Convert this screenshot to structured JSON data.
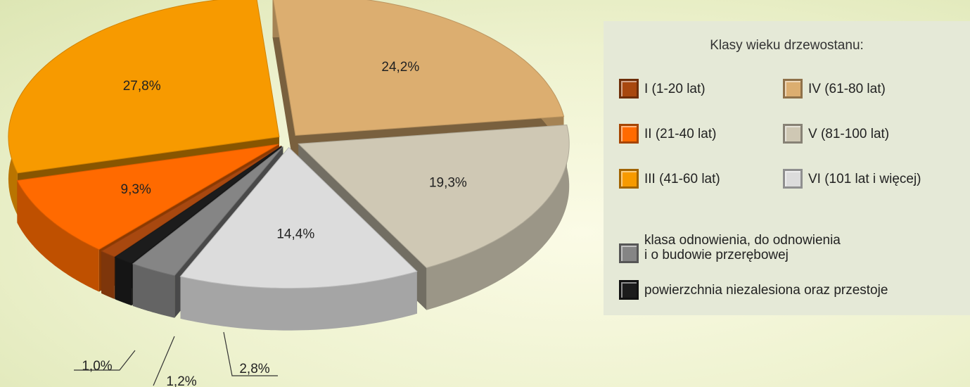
{
  "chart_data": {
    "type": "pie",
    "legend_title": "Klasy wieku drzewostanu:",
    "categories": [
      "I (1-20 lat)",
      "II (21-40 lat)",
      "III (41-60 lat)",
      "IV (61-80 lat)",
      "V (81-100 lat)",
      "VI (101 lat i więcej)",
      "klasa odnowienia, do odnowienia\ni o budowie przerębowej",
      "powierzchnia niezalesiona oraz przestoje"
    ],
    "values": [
      1.0,
      9.3,
      27.8,
      24.2,
      19.3,
      14.4,
      2.8,
      1.2
    ],
    "value_labels": [
      "1,0%",
      "9,3%",
      "27,8%",
      "24,2%",
      "19,3%",
      "14,4%",
      "2,8%",
      "1,2%"
    ],
    "colors": [
      "#a8480f",
      "#ff6a00",
      "#f79a00",
      "#dcae70",
      "#cfc8b4",
      "#dcdcdc",
      "#858585",
      "#1c1c1c"
    ]
  }
}
